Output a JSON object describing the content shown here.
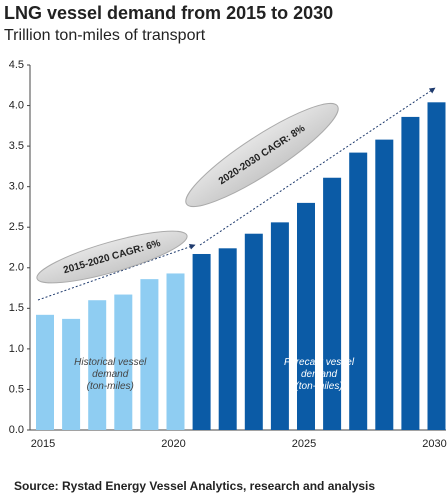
{
  "chart_data": {
    "type": "bar",
    "title": "LNG vessel demand from 2015 to 2030",
    "subtitle": "Trillion ton-miles of transport",
    "source": "Source: Rystad Energy Vessel Analytics, research and analysis",
    "categories": [
      "2015",
      null,
      null,
      null,
      null,
      "2020",
      null,
      null,
      null,
      null,
      "2025",
      null,
      null,
      null,
      null,
      "2030"
    ],
    "series": [
      {
        "name": "Historical vessel\ndemand\n(ton-miles)",
        "color": "#8fcdf2",
        "values": [
          1.42,
          1.37,
          1.6,
          1.67,
          1.86,
          1.93,
          null,
          null,
          null,
          null,
          null,
          null,
          null,
          null,
          null,
          null
        ]
      },
      {
        "name": "Forecast vessel\ndemand\n(ton-miles)",
        "color": "#0b5ba6",
        "values": [
          null,
          null,
          null,
          null,
          null,
          null,
          2.17,
          2.24,
          2.42,
          2.56,
          2.8,
          3.11,
          3.42,
          3.58,
          3.86,
          4.04
        ]
      }
    ],
    "annotations": [
      "2015-2020 CAGR: 6%",
      "2020-2030 CAGR: 8%"
    ],
    "ylim": [
      0,
      4.5
    ],
    "yticks": [
      {
        "value": 0,
        "label": "0.0"
      },
      {
        "value": 0.5,
        "label": "0.5"
      },
      {
        "value": 1,
        "label": "1.0"
      },
      {
        "value": 1.5,
        "label": "1.5"
      },
      {
        "value": 2,
        "label": "2.0"
      },
      {
        "value": 2.5,
        "label": "2.5"
      },
      {
        "value": 3,
        "label": "3.0"
      },
      {
        "value": 3.5,
        "label": "3.5"
      },
      {
        "value": 4,
        "label": "4.0"
      },
      {
        "value": 4.5,
        "label": "4.5"
      }
    ],
    "grid": false
  }
}
